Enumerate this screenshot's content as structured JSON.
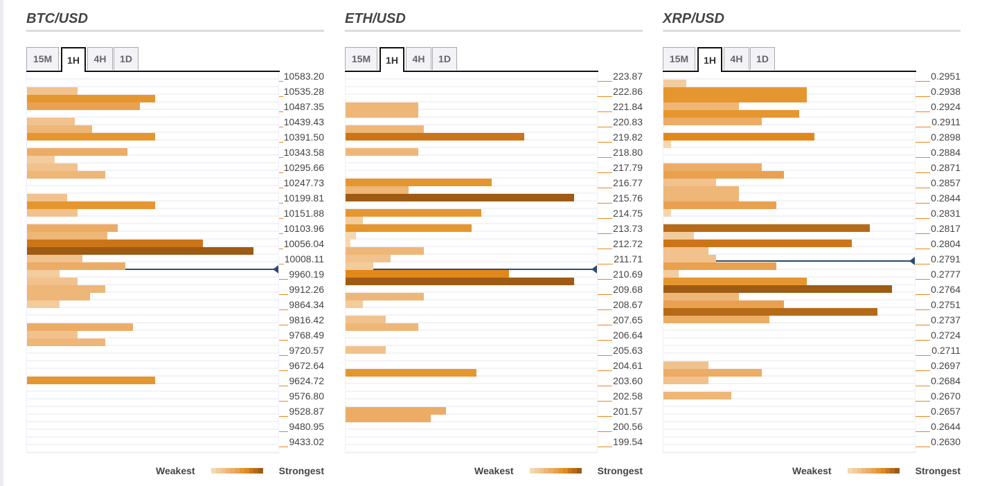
{
  "palette": [
    "#f5d7b1",
    "#f3cc9d",
    "#f1c28d",
    "#eeb677",
    "#ecac66",
    "#e9a150",
    "#e6962f",
    "#e2881b",
    "#cc7518",
    "#b56a18",
    "#9e5b14"
  ],
  "legend": {
    "weakest": "Weakest",
    "strongest": "Strongest"
  },
  "tabs": [
    "15M",
    "1H",
    "4H",
    "1D"
  ],
  "active_tab": "1H",
  "chart_data": [
    {
      "type": "bar",
      "orientation": "horizontal",
      "title": "BTC/USD",
      "axis_labels": [
        "10583.20",
        "10535.28",
        "10487.35",
        "10439.43",
        "10391.50",
        "10343.58",
        "10295.66",
        "10247.73",
        "10199.81",
        "10151.88",
        "10103.96",
        "10056.04",
        "10008.11",
        "9960.19",
        "9912.26",
        "9864.34",
        "9816.42",
        "9768.49",
        "9720.57",
        "9672.64",
        "9624.72",
        "9576.80",
        "9528.87",
        "9480.95",
        "9433.02"
      ],
      "price_top": 10583.2,
      "label_step": 47.92,
      "current_price": 9975,
      "strength_percent": [
        0,
        0,
        20,
        51,
        45,
        0,
        19,
        26,
        51,
        0,
        40,
        11,
        20,
        31,
        0,
        0,
        16,
        51,
        20,
        0,
        36,
        32,
        70,
        90,
        22,
        39,
        13,
        20,
        31,
        25,
        13,
        0,
        0,
        42,
        20,
        31,
        0,
        0,
        0,
        0,
        51,
        0,
        0,
        0,
        0,
        0,
        0,
        0,
        0,
        0
      ]
    },
    {
      "type": "bar",
      "orientation": "horizontal",
      "title": "ETH/USD",
      "axis_labels": [
        "223.87",
        "222.86",
        "221.84",
        "220.83",
        "219.82",
        "218.80",
        "217.79",
        "216.77",
        "215.76",
        "214.75",
        "213.73",
        "212.72",
        "211.71",
        "210.69",
        "209.68",
        "208.67",
        "207.65",
        "206.64",
        "205.63",
        "204.61",
        "203.60",
        "202.58",
        "201.57",
        "200.56",
        "199.54"
      ],
      "price_top": 223.87,
      "label_step": 1.0165,
      "current_price": 210.98,
      "strength_percent": [
        0,
        0,
        0,
        0,
        29,
        29,
        0,
        31,
        71,
        0,
        29,
        0,
        0,
        0,
        58,
        25,
        91,
        0,
        54,
        7,
        50,
        4,
        2,
        31,
        18,
        11,
        65,
        91,
        0,
        31,
        7,
        0,
        16,
        29,
        0,
        0,
        16,
        0,
        0,
        52,
        0,
        0,
        0,
        0,
        40,
        34,
        0,
        0,
        0,
        0
      ]
    },
    {
      "type": "bar",
      "orientation": "horizontal",
      "title": "XRP/USD",
      "axis_labels": [
        "0.2951",
        "0.2938",
        "0.2924",
        "0.2911",
        "0.2898",
        "0.2884",
        "0.2871",
        "0.2857",
        "0.2844",
        "0.2831",
        "0.2817",
        "0.2804",
        "0.2791",
        "0.2777",
        "0.2764",
        "0.2751",
        "0.2737",
        "0.2724",
        "0.2711",
        "0.2697",
        "0.2684",
        "0.2670",
        "0.2657",
        "0.2644",
        "0.2630"
      ],
      "price_top": 0.2951,
      "label_step": 0.00135,
      "current_price": 0.2787,
      "strength_percent": [
        0,
        9,
        57,
        57,
        30,
        54,
        39,
        0,
        60,
        3,
        0,
        0,
        39,
        48,
        21,
        30,
        30,
        45,
        3,
        0,
        82,
        12,
        75,
        18,
        21,
        45,
        6,
        57,
        91,
        30,
        48,
        85,
        42,
        0,
        0,
        0,
        0,
        0,
        18,
        39,
        18,
        0,
        27,
        0,
        0,
        0,
        0,
        0,
        0,
        0
      ]
    }
  ]
}
